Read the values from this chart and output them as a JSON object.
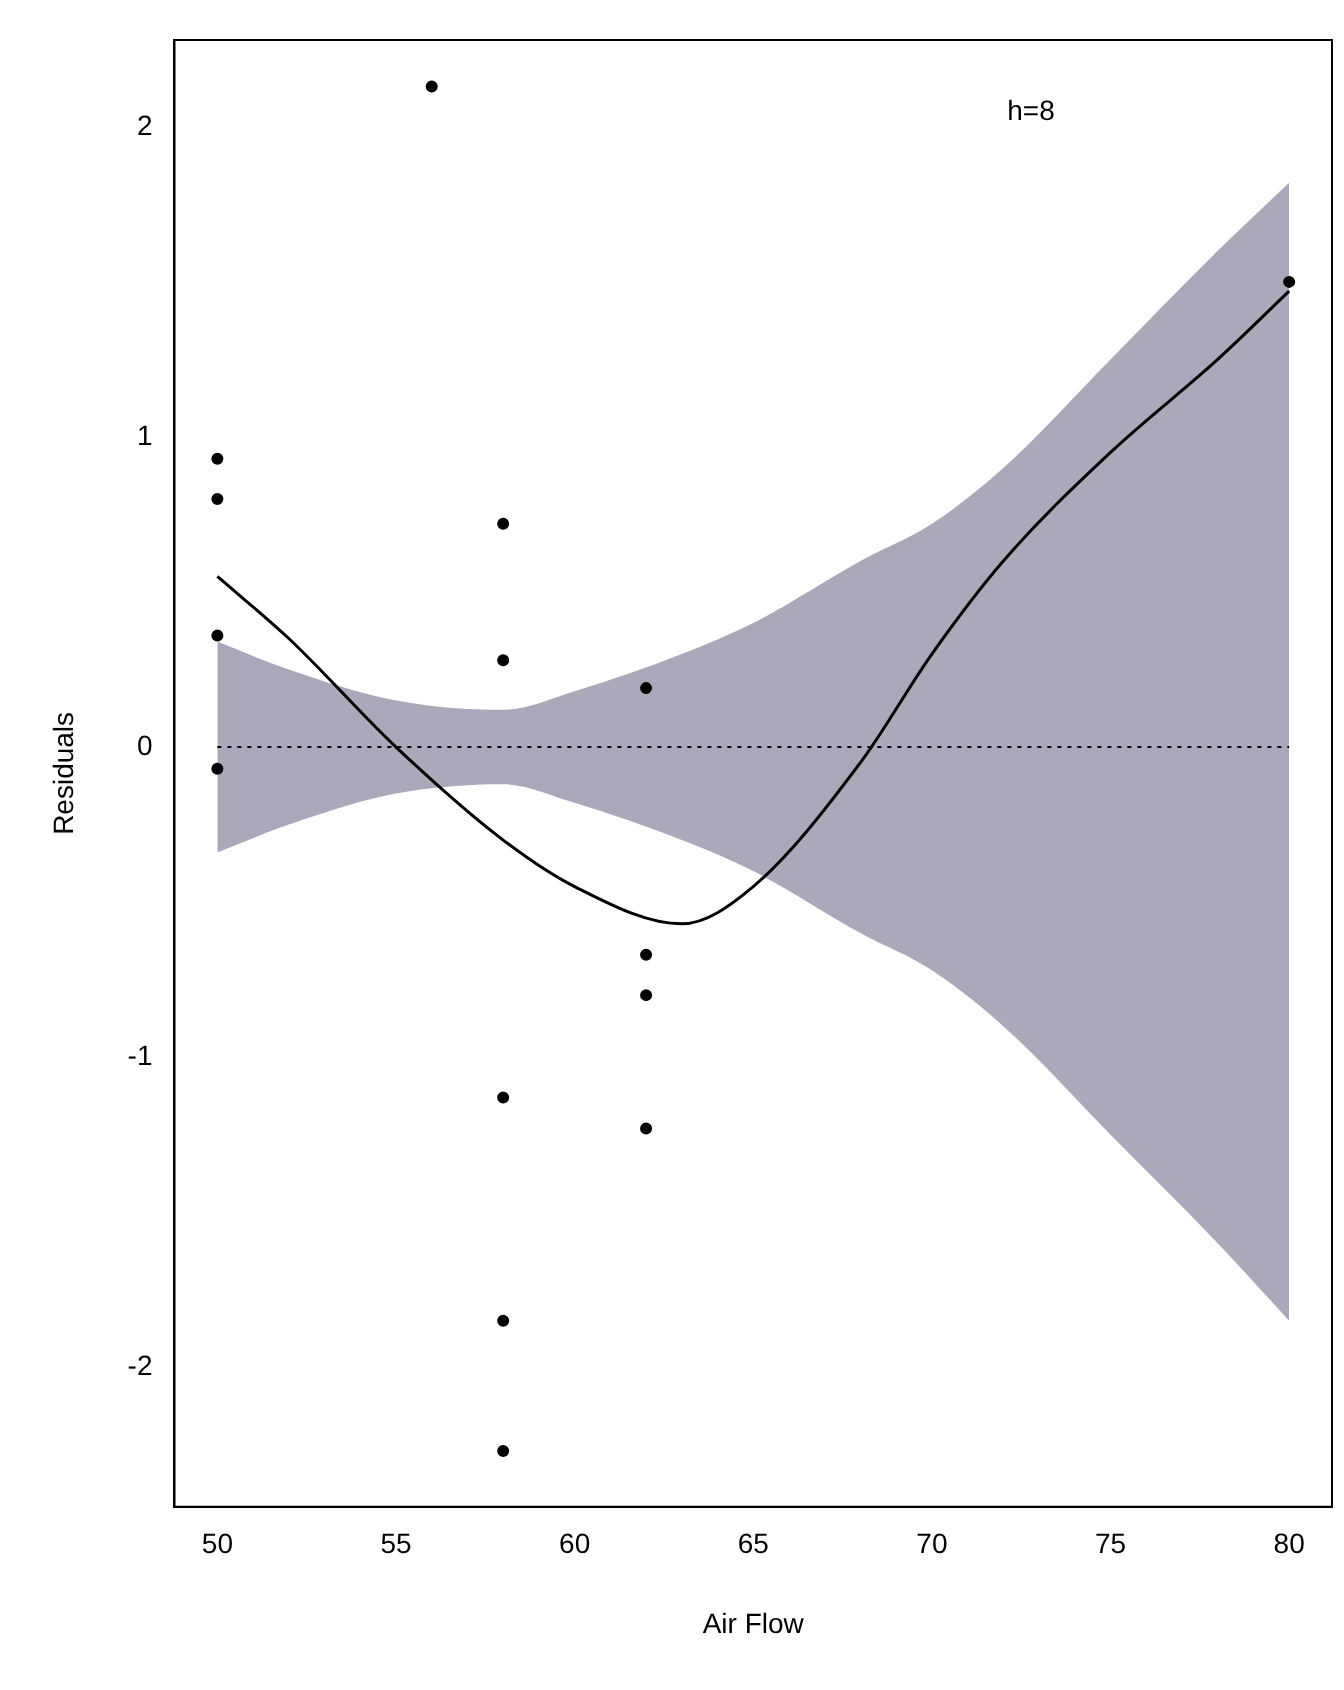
{
  "chart_data": {
    "type": "scatter",
    "xlabel": "Air Flow",
    "ylabel": "Residuals",
    "annotations": [
      "h=8"
    ],
    "xlim": [
      48.8,
      81.2
    ],
    "xticks": [
      50,
      55,
      60,
      65,
      70,
      75,
      80
    ],
    "ylim": [
      -2.45,
      2.28
    ],
    "yticks": [
      -2,
      -1,
      0,
      1,
      2
    ],
    "grid": false,
    "legend": false,
    "marker": "circle",
    "ref_lines": [
      {
        "axis": "y",
        "value": 0,
        "label": null,
        "color": "#000000",
        "line_style": "dotted"
      }
    ],
    "series": [
      {
        "type": "scatter",
        "color": "#000000",
        "x": [
          50,
          50,
          50,
          50,
          56,
          58,
          58,
          58,
          58,
          58,
          62,
          62,
          62,
          62,
          80
        ],
        "values": [
          0.93,
          0.8,
          0.36,
          -0.07,
          2.13,
          0.72,
          0.28,
          -1.13,
          -1.85,
          -2.27,
          0.19,
          -0.67,
          -0.8,
          -1.23,
          1.5
        ]
      },
      {
        "type": "line",
        "color": "#000000",
        "marker": "none",
        "line_style": "solid",
        "x": [
          50,
          52,
          55,
          58,
          60,
          63,
          65,
          68,
          70,
          72,
          75,
          78,
          80
        ],
        "values": [
          0.55,
          0.35,
          0.0,
          -0.3,
          -0.45,
          -0.57,
          -0.45,
          -0.05,
          0.3,
          0.6,
          0.95,
          1.25,
          1.47
        ],
        "lower": [
          -0.34,
          -0.25,
          -0.15,
          -0.12,
          -0.18,
          -0.3,
          -0.4,
          -0.6,
          -0.72,
          -0.9,
          -1.25,
          -1.6,
          -1.85
        ],
        "upper": [
          0.34,
          0.25,
          0.15,
          0.12,
          0.18,
          0.3,
          0.4,
          0.6,
          0.72,
          0.9,
          1.25,
          1.6,
          1.82
        ]
      }
    ]
  }
}
